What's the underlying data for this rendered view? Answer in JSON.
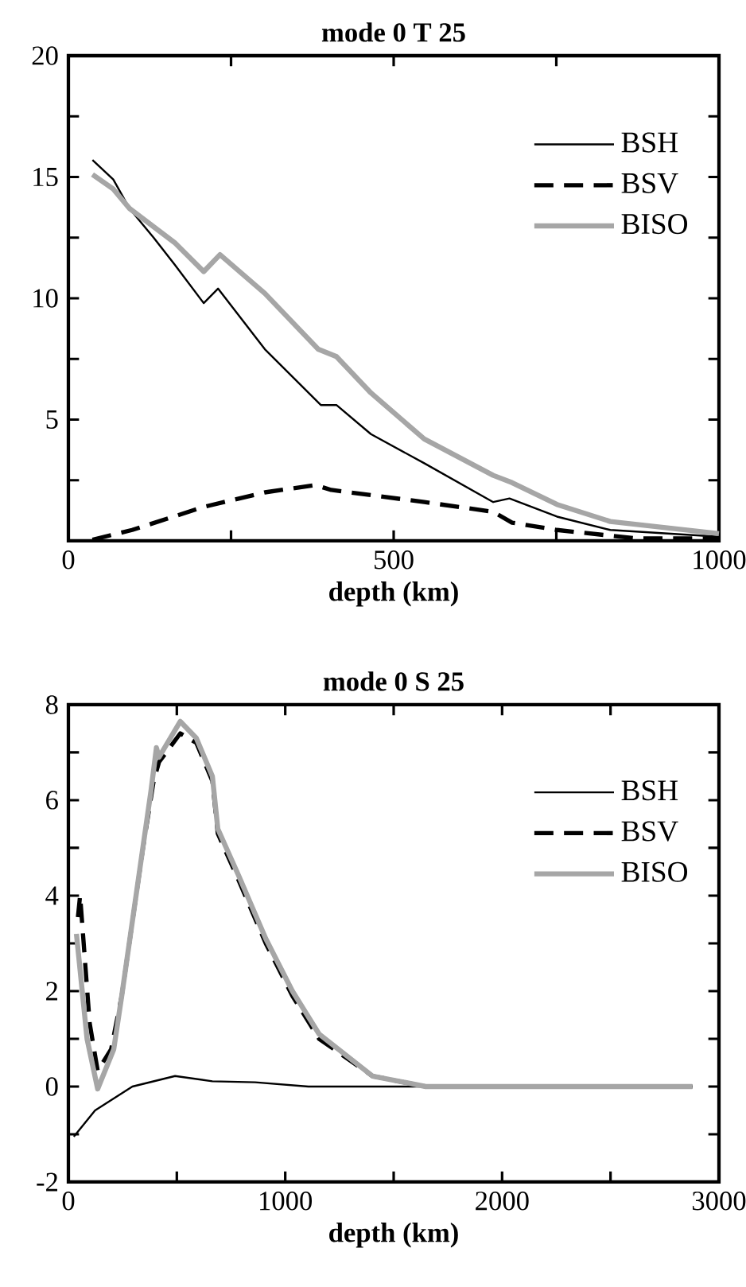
{
  "chart_data": [
    {
      "type": "line",
      "title": "mode 0 T 25",
      "xlabel": "depth (km)",
      "xlim": [
        0,
        1000
      ],
      "ylim": [
        0,
        20
      ],
      "xticks": [
        0,
        {
          "value": 250,
          "label": null
        },
        500,
        {
          "value": 750,
          "label": null
        },
        1000
      ],
      "yticks": [
        {
          "value": 0,
          "label": null
        },
        {
          "value": 2.5,
          "label": null
        },
        5,
        {
          "value": 7.5,
          "label": null
        },
        10,
        {
          "value": 12.5,
          "label": null
        },
        15,
        {
          "value": 17.5,
          "label": null
        },
        20
      ],
      "legend": "top right",
      "grid": false,
      "marker": "none",
      "series": [
        {
          "name": "BSH",
          "color": "#000000",
          "line_style": "solid",
          "x": [
            37,
            69,
            94,
            131,
            163,
            208,
            230,
            302,
            388,
            412,
            465,
            547,
            653,
            678,
            751,
            833,
            1000
          ],
          "values": [
            15.7,
            14.9,
            13.7,
            12.5,
            11.4,
            9.8,
            10.4,
            7.9,
            5.6,
            5.6,
            4.4,
            3.2,
            1.6,
            1.75,
            1.0,
            0.45,
            0.17
          ]
        },
        {
          "name": "BSV",
          "color": "#000000",
          "line_style": "dashed",
          "x": [
            37,
            69,
            98,
            208,
            302,
            380,
            404,
            547,
            653,
            682,
            751,
            873,
            1000
          ],
          "values": [
            0.05,
            0.26,
            0.45,
            1.4,
            2.0,
            2.3,
            2.1,
            1.6,
            1.2,
            0.75,
            0.45,
            0.1,
            0.1
          ]
        },
        {
          "name": "BISO",
          "color": "#a6a6a6",
          "line_style": "solid",
          "x": [
            37,
            69,
            94,
            163,
            208,
            233,
            302,
            384,
            412,
            465,
            547,
            653,
            682,
            751,
            833,
            1000
          ],
          "values": [
            15.1,
            14.5,
            13.7,
            12.3,
            11.1,
            11.8,
            10.2,
            7.9,
            7.6,
            6.1,
            4.2,
            2.7,
            2.4,
            1.5,
            0.8,
            0.3
          ]
        }
      ]
    },
    {
      "type": "line",
      "title": "mode 0 S 25",
      "xlabel": "depth (km)",
      "xlim": [
        0,
        3000
      ],
      "ylim": [
        -2,
        8
      ],
      "xticks": [
        0,
        {
          "value": 500,
          "label": null
        },
        1000,
        {
          "value": 1500,
          "label": null
        },
        2000,
        {
          "value": 2500,
          "label": null
        },
        3000
      ],
      "yticks": [
        -2,
        {
          "value": -1,
          "label": null
        },
        0,
        {
          "value": 1,
          "label": null
        },
        2,
        {
          "value": 3,
          "label": null
        },
        4,
        {
          "value": 5,
          "label": null
        },
        6,
        {
          "value": 7,
          "label": null
        },
        8
      ],
      "legend": "top right",
      "grid": false,
      "marker": "none",
      "series": [
        {
          "name": "BSH",
          "color": "#000000",
          "line_style": "solid",
          "x": [
            25,
            123,
            295,
            492,
            664,
            861,
            1107,
            2877
          ],
          "values": [
            -1.05,
            -0.5,
            0,
            0.22,
            0.11,
            0.09,
            0,
            0
          ]
        },
        {
          "name": "BSV",
          "color": "#000000",
          "line_style": "dashed",
          "x": [
            44,
            54,
            98,
            135,
            197,
            246,
            344,
            393,
            418,
            516,
            590,
            664,
            689,
            787,
            910,
            1033,
            1156,
            1402,
            1648,
            2877
          ],
          "values": [
            3.55,
            4.0,
            1.33,
            0.33,
            0.78,
            1.9,
            5.0,
            6.4,
            6.8,
            7.4,
            7.2,
            6.4,
            5.3,
            4.3,
            3.0,
            1.9,
            1.0,
            0.22,
            0,
            0
          ]
        },
        {
          "name": "BISO",
          "color": "#a6a6a6",
          "line_style": "solid",
          "x": [
            37,
            86,
            135,
            209,
            246,
            381,
            406,
            418,
            516,
            590,
            664,
            689,
            787,
            910,
            1033,
            1156,
            1402,
            1648,
            2877
          ],
          "values": [
            3.2,
            1.0,
            -0.05,
            0.78,
            1.9,
            6.2,
            7.1,
            6.9,
            7.65,
            7.3,
            6.5,
            5.4,
            4.4,
            3.1,
            2.0,
            1.1,
            0.22,
            0,
            0
          ]
        }
      ]
    }
  ]
}
